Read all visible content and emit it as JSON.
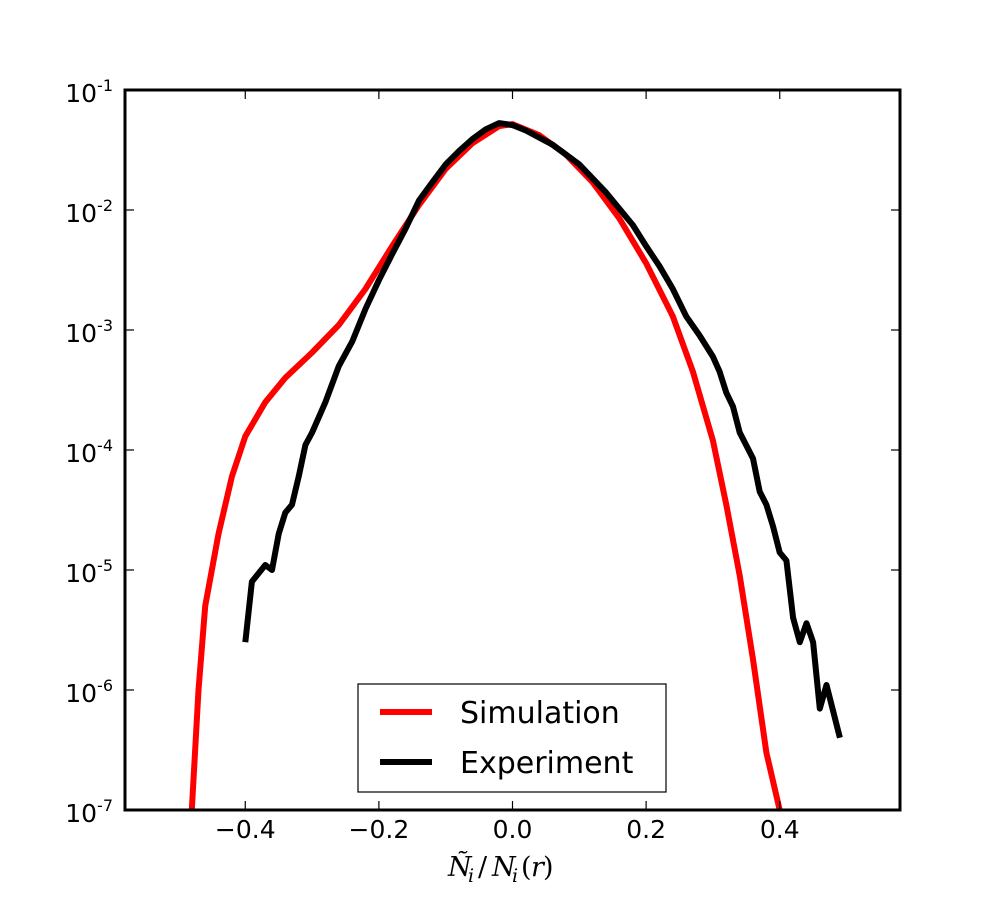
{
  "chart_data": {
    "type": "line",
    "title": "",
    "xlabel": "Ñ_i / N_i(r)",
    "ylabel": "",
    "xlim": [
      -0.58,
      0.58
    ],
    "ylim": [
      1e-07,
      0.1
    ],
    "yscale": "log",
    "grid": false,
    "legend_position": "lower center",
    "x_ticks": [
      {
        "value": -0.4,
        "label": "−0.4"
      },
      {
        "value": -0.2,
        "label": "−0.2"
      },
      {
        "value": 0.0,
        "label": "0.0"
      },
      {
        "value": 0.2,
        "label": "0.2"
      },
      {
        "value": 0.4,
        "label": "0.4"
      }
    ],
    "y_ticks": [
      {
        "value": 0.1,
        "base": "10",
        "exp": "-1"
      },
      {
        "value": 0.01,
        "base": "10",
        "exp": "-2"
      },
      {
        "value": 0.001,
        "base": "10",
        "exp": "-3"
      },
      {
        "value": 0.0001,
        "base": "10",
        "exp": "-4"
      },
      {
        "value": 1e-05,
        "base": "10",
        "exp": "-5"
      },
      {
        "value": 1e-06,
        "base": "10",
        "exp": "-6"
      },
      {
        "value": 1e-07,
        "base": "10",
        "exp": "-7"
      }
    ],
    "series": [
      {
        "name": "Simulation",
        "color": "#ff0000",
        "points": [
          [
            -0.48,
            1e-07
          ],
          [
            -0.47,
            1e-06
          ],
          [
            -0.46,
            5e-06
          ],
          [
            -0.44,
            2e-05
          ],
          [
            -0.42,
            6e-05
          ],
          [
            -0.4,
            0.00013
          ],
          [
            -0.37,
            0.00025
          ],
          [
            -0.34,
            0.0004
          ],
          [
            -0.3,
            0.00065
          ],
          [
            -0.26,
            0.0011
          ],
          [
            -0.22,
            0.0022
          ],
          [
            -0.18,
            0.005
          ],
          [
            -0.14,
            0.011
          ],
          [
            -0.1,
            0.022
          ],
          [
            -0.06,
            0.036
          ],
          [
            -0.02,
            0.05
          ],
          [
            0.0,
            0.052
          ],
          [
            0.04,
            0.042
          ],
          [
            0.08,
            0.029
          ],
          [
            0.12,
            0.017
          ],
          [
            0.16,
            0.0085
          ],
          [
            0.2,
            0.0036
          ],
          [
            0.24,
            0.0013
          ],
          [
            0.27,
            0.00045
          ],
          [
            0.3,
            0.00012
          ],
          [
            0.32,
            3.5e-05
          ],
          [
            0.34,
            9e-06
          ],
          [
            0.36,
            1.8e-06
          ],
          [
            0.38,
            3e-07
          ],
          [
            0.4,
            1e-07
          ]
        ]
      },
      {
        "name": "Experiment",
        "color": "#000000",
        "points": [
          [
            -0.4,
            2.5e-06
          ],
          [
            -0.39,
            8e-06
          ],
          [
            -0.37,
            1.1e-05
          ],
          [
            -0.36,
            1e-05
          ],
          [
            -0.35,
            2e-05
          ],
          [
            -0.34,
            3e-05
          ],
          [
            -0.33,
            3.5e-05
          ],
          [
            -0.32,
            6e-05
          ],
          [
            -0.31,
            0.00011
          ],
          [
            -0.3,
            0.00014
          ],
          [
            -0.28,
            0.00025
          ],
          [
            -0.26,
            0.0005
          ],
          [
            -0.24,
            0.0008
          ],
          [
            -0.22,
            0.0015
          ],
          [
            -0.2,
            0.0026
          ],
          [
            -0.18,
            0.0043
          ],
          [
            -0.16,
            0.007
          ],
          [
            -0.14,
            0.012
          ],
          [
            -0.12,
            0.017
          ],
          [
            -0.1,
            0.024
          ],
          [
            -0.08,
            0.031
          ],
          [
            -0.06,
            0.039
          ],
          [
            -0.04,
            0.047
          ],
          [
            -0.02,
            0.053
          ],
          [
            0.0,
            0.051
          ],
          [
            0.02,
            0.046
          ],
          [
            0.06,
            0.035
          ],
          [
            0.1,
            0.024
          ],
          [
            0.14,
            0.014
          ],
          [
            0.18,
            0.0075
          ],
          [
            0.2,
            0.005
          ],
          [
            0.22,
            0.0034
          ],
          [
            0.24,
            0.0022
          ],
          [
            0.26,
            0.0013
          ],
          [
            0.28,
            0.0009
          ],
          [
            0.3,
            0.0006
          ],
          [
            0.31,
            0.00045
          ],
          [
            0.32,
            0.0003
          ],
          [
            0.33,
            0.00023
          ],
          [
            0.34,
            0.00014
          ],
          [
            0.36,
            8.5e-05
          ],
          [
            0.37,
            4.5e-05
          ],
          [
            0.38,
            3.5e-05
          ],
          [
            0.39,
            2.3e-05
          ],
          [
            0.4,
            1.4e-05
          ],
          [
            0.41,
            1.2e-05
          ],
          [
            0.42,
            4e-06
          ],
          [
            0.43,
            2.5e-06
          ],
          [
            0.44,
            3.6e-06
          ],
          [
            0.45,
            2.5e-06
          ],
          [
            0.46,
            7e-07
          ],
          [
            0.47,
            1.1e-06
          ],
          [
            0.49,
            4e-07
          ]
        ]
      }
    ]
  }
}
